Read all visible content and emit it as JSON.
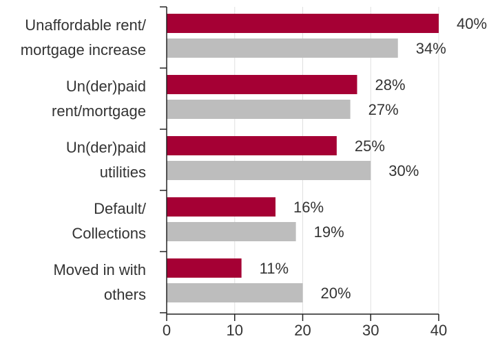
{
  "chart_data": {
    "type": "bar",
    "orientation": "horizontal",
    "categories": [
      [
        "Unaffordable rent/",
        "mortgage increase"
      ],
      [
        "Un(der)paid",
        "rent/mortgage"
      ],
      [
        "Un(der)paid",
        "utilities"
      ],
      [
        "Default/",
        "Collections"
      ],
      [
        "Moved in with",
        "others"
      ]
    ],
    "series": [
      {
        "color": "#a50034",
        "values": [
          40,
          28,
          25,
          16,
          11
        ],
        "value_labels": [
          "40%",
          "28%",
          "25%",
          "16%",
          "11%"
        ]
      },
      {
        "color": "#bdbdbd",
        "values": [
          34,
          27,
          30,
          19,
          20
        ],
        "value_labels": [
          "34%",
          "27%",
          "30%",
          "19%",
          "20%"
        ]
      }
    ],
    "xlim": [
      0,
      40
    ],
    "xticks": [
      0,
      10,
      20,
      30,
      40
    ],
    "grid": true
  }
}
